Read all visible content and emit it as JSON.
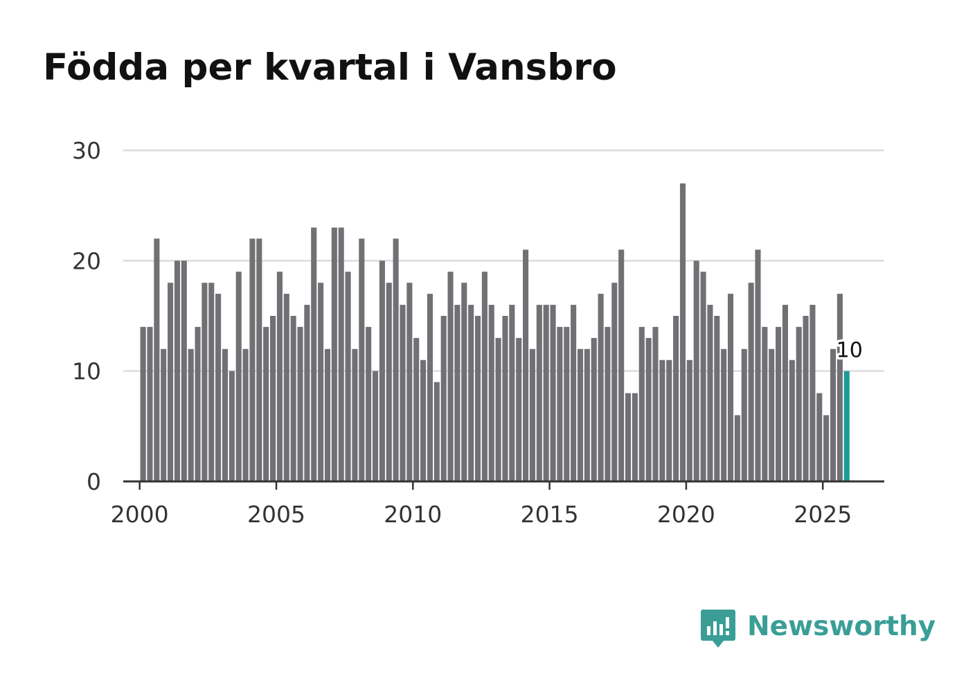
{
  "title": "Födda per kvartal i Vansbro",
  "brand": {
    "name": "Newsworthy",
    "color": "#3a9e97"
  },
  "colors": {
    "bar": "#707075",
    "highlight": "#1a9c94"
  },
  "chart_data": {
    "type": "bar",
    "title": "Födda per kvartal i Vansbro",
    "xlabel": "",
    "ylabel": "",
    "ylim": [
      0,
      30
    ],
    "yticks": [
      0,
      10,
      20,
      30
    ],
    "xlim": [
      1999.4,
      2027.25
    ],
    "xticks": [
      2000,
      2005,
      2010,
      2015,
      2020,
      2025
    ],
    "x_start": 2000,
    "periods_per_year": 4,
    "grid": true,
    "highlight_last": true,
    "last_value_label": "10",
    "values": [
      14,
      14,
      22,
      12,
      18,
      20,
      20,
      12,
      14,
      18,
      18,
      17,
      12,
      10,
      19,
      12,
      22,
      22,
      14,
      15,
      19,
      17,
      15,
      14,
      16,
      23,
      18,
      12,
      23,
      23,
      19,
      12,
      22,
      14,
      10,
      20,
      18,
      22,
      16,
      18,
      13,
      11,
      17,
      9,
      15,
      19,
      16,
      18,
      16,
      15,
      19,
      16,
      13,
      15,
      16,
      13,
      21,
      12,
      16,
      16,
      16,
      14,
      14,
      16,
      12,
      12,
      13,
      17,
      14,
      18,
      21,
      8,
      8,
      14,
      13,
      14,
      11,
      11,
      15,
      27,
      11,
      20,
      19,
      16,
      15,
      12,
      17,
      6,
      12,
      18,
      21,
      14,
      12,
      14,
      16,
      11,
      14,
      15,
      16,
      8,
      6,
      12,
      17,
      10
    ]
  }
}
